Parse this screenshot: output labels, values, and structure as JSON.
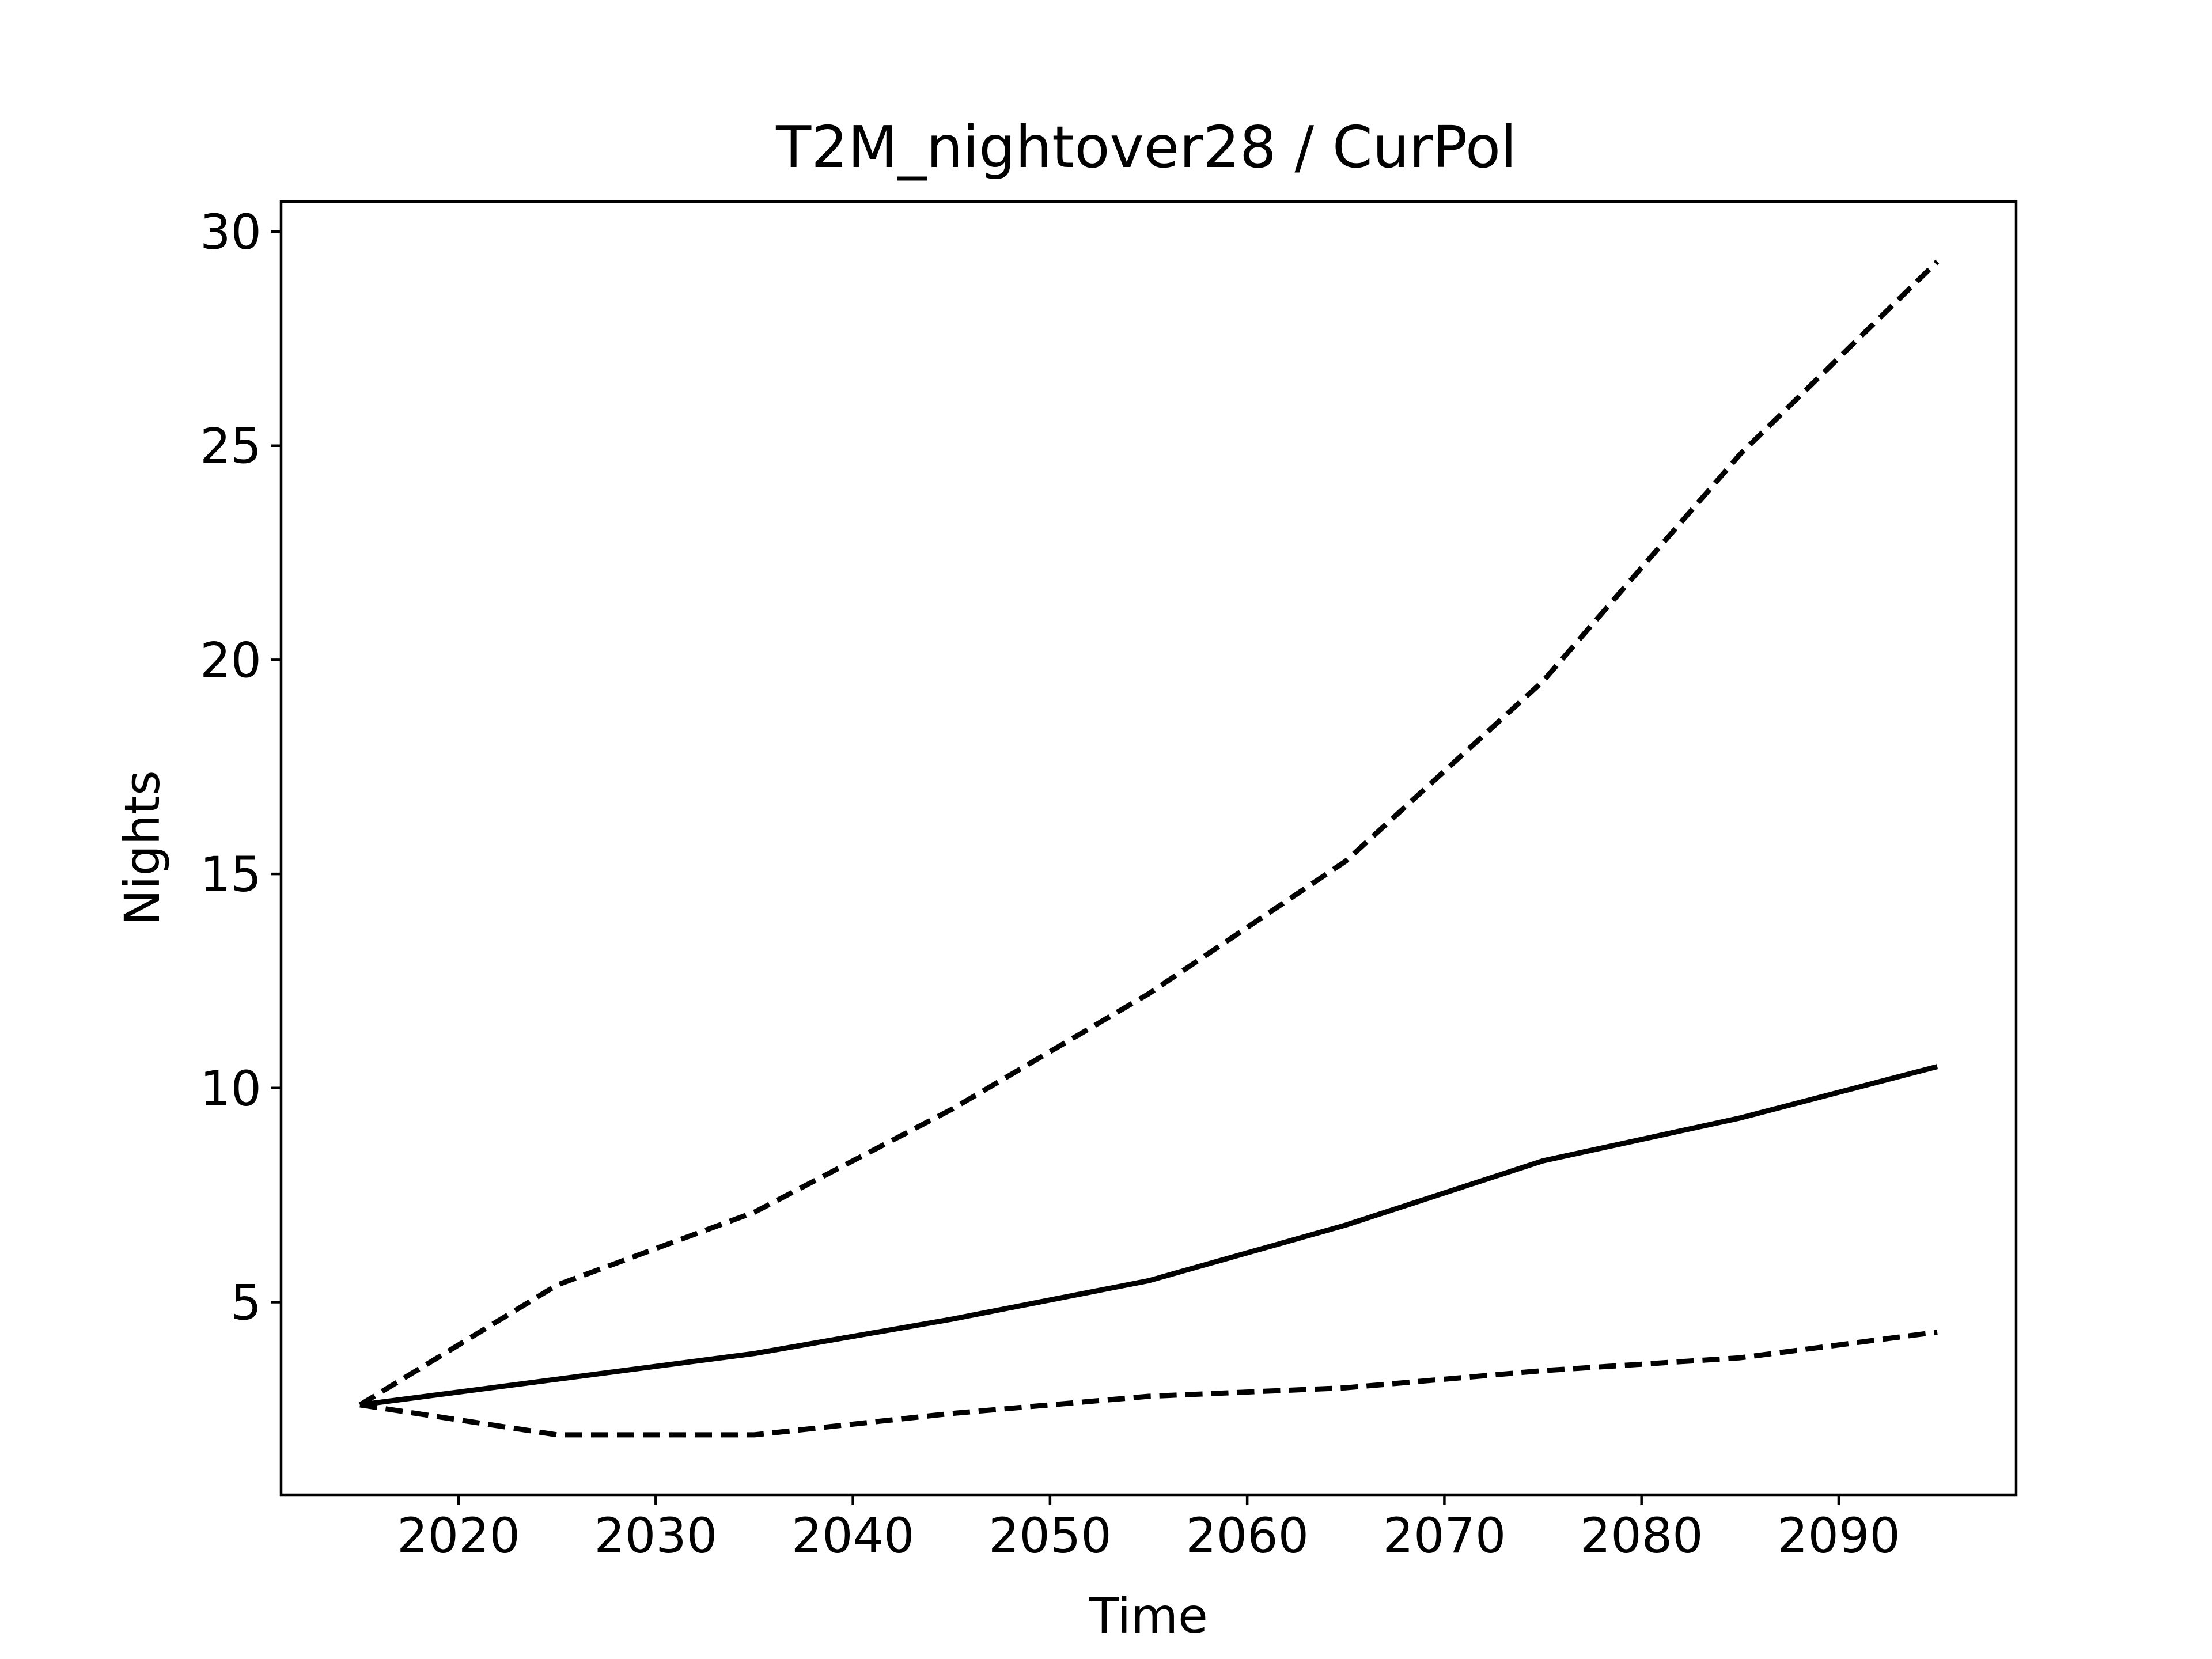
{
  "chart_data": {
    "type": "line",
    "title": "T2M_nightover28 / CurPol",
    "xlabel": "Time",
    "ylabel": "Nights",
    "xlim": [
      2011,
      2099
    ],
    "ylim": [
      0.5,
      30.7
    ],
    "xticks": [
      2020,
      2030,
      2040,
      2050,
      2060,
      2070,
      2080,
      2090
    ],
    "yticks": [
      5,
      10,
      15,
      20,
      25,
      30
    ],
    "grid": false,
    "x": [
      2015,
      2025,
      2035,
      2045,
      2055,
      2065,
      2075,
      2085,
      2095
    ],
    "series": [
      {
        "style": "solid",
        "color": "#000000",
        "values": [
          2.6,
          3.2,
          3.8,
          4.6,
          5.5,
          6.8,
          8.3,
          9.3,
          10.5
        ]
      },
      {
        "style": "dashed",
        "color": "#000000",
        "values": [
          2.6,
          5.4,
          7.1,
          9.5,
          12.2,
          15.3,
          19.5,
          24.8,
          29.3
        ]
      },
      {
        "style": "dashed",
        "color": "#000000",
        "values": [
          2.6,
          1.9,
          1.9,
          2.4,
          2.8,
          3.0,
          3.4,
          3.7,
          4.3
        ]
      }
    ]
  }
}
